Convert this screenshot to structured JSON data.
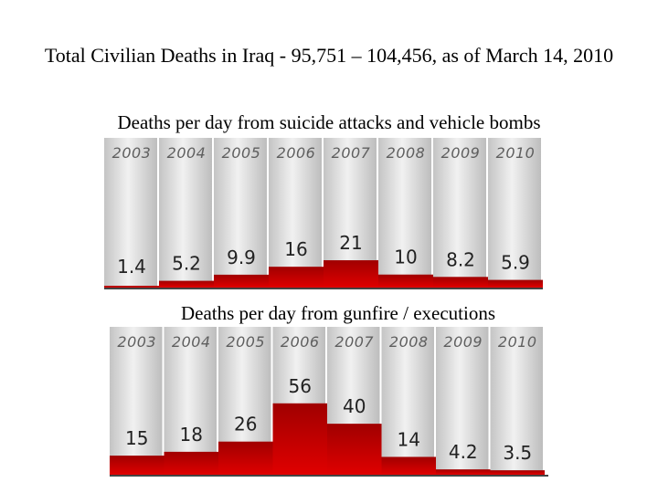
{
  "title": "Total Civilian Deaths in Iraq - 95,751 – 104,456, as of March 14, 2010",
  "chart_data": [
    {
      "type": "bar",
      "title": "Deaths per day from suicide attacks and vehicle bombs",
      "categories": [
        "2003",
        "2004",
        "2005",
        "2006",
        "2007",
        "2008",
        "2009",
        "2010"
      ],
      "values": [
        1.4,
        5.2,
        9.9,
        16,
        21,
        10,
        8.2,
        5.9
      ],
      "value_labels": [
        "1.4",
        "5.2",
        "9.9",
        "16",
        "21",
        "10",
        "8.2",
        "5.9"
      ],
      "xlabel": "",
      "ylabel": "",
      "ylim": [
        0,
        115
      ],
      "grid": false,
      "bar_color": "#a00000"
    },
    {
      "type": "bar",
      "title": "Deaths per day from gunfire / executions",
      "categories": [
        "2003",
        "2004",
        "2005",
        "2006",
        "2007",
        "2008",
        "2009",
        "2010"
      ],
      "values": [
        15,
        18,
        26,
        56,
        40,
        14,
        4.2,
        3.5
      ],
      "value_labels": [
        "15",
        "18",
        "26",
        "56",
        "40",
        "14",
        "4.2",
        "3.5"
      ],
      "xlabel": "",
      "ylabel": "",
      "ylim": [
        0,
        116
      ],
      "grid": false,
      "bar_color": "#a00000"
    }
  ]
}
